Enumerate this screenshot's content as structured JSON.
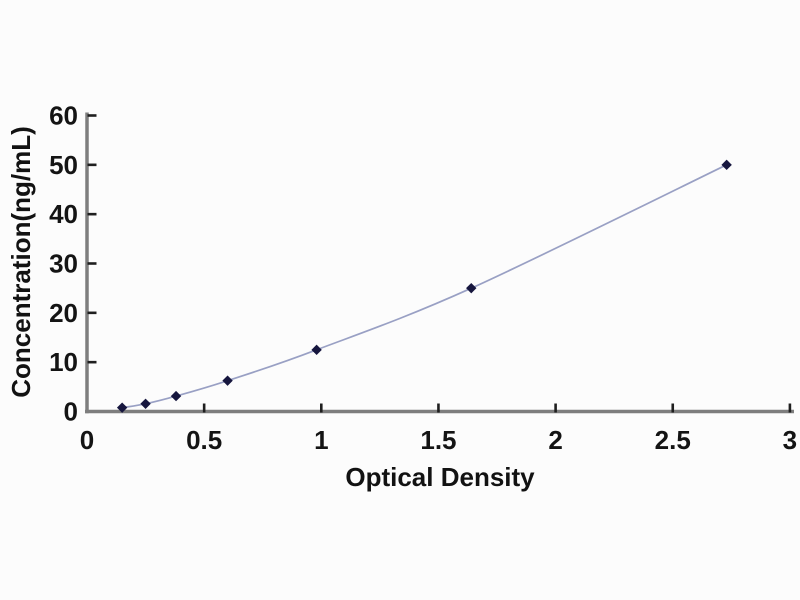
{
  "chart_data": {
    "type": "line",
    "title": "",
    "xlabel": "Optical Density",
    "ylabel": "Concentration(ng/mL)",
    "x": [
      0.15,
      0.25,
      0.38,
      0.6,
      0.98,
      1.64,
      2.73
    ],
    "y": [
      0.78,
      1.56,
      3.12,
      6.25,
      12.5,
      25,
      50
    ],
    "xlim": [
      0,
      3
    ],
    "ylim": [
      0,
      60
    ],
    "x_ticks": [
      0,
      0.5,
      1,
      1.5,
      2,
      2.5,
      3
    ],
    "x_tick_labels": [
      "0",
      "0.5",
      "1",
      "1.5",
      "2",
      "2.5",
      "3"
    ],
    "y_ticks": [
      0,
      10,
      20,
      30,
      40,
      50,
      60
    ],
    "y_tick_labels": [
      "0",
      "10",
      "20",
      "30",
      "40",
      "50",
      "60"
    ],
    "grid": false,
    "legend": "none",
    "marker": "diamond",
    "colors": {
      "line": "#99a0c4",
      "marker": "#16163e",
      "axis": "#7e7e7e",
      "tick": "#1f1f1f",
      "text": "#141414",
      "background": "#fcfcfc"
    }
  }
}
